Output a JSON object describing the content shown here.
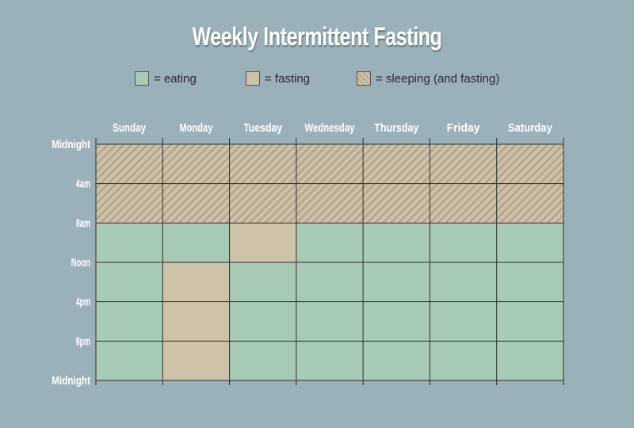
{
  "title": "Weekly Intermittent Fasting",
  "legend": [
    {
      "key": "eating",
      "label": "= eating"
    },
    {
      "key": "fasting",
      "label": "= fasting"
    },
    {
      "key": "sleeping",
      "label": "= sleeping (and fasting)"
    }
  ],
  "colors": {
    "eating": "#a8cbb5",
    "fasting": "#cec3a9",
    "sleeping_stripe": "#b5a891",
    "sleeping_base": "#cec3a9",
    "grid_line": "#2d2d2d",
    "background": "#9ab1b9"
  },
  "days": [
    "Sunday",
    "Monday",
    "Tuesday",
    "Wednesday",
    "Thursday",
    "Friday",
    "Saturday"
  ],
  "time_labels": [
    "Midnight",
    "4am",
    "8am",
    "Noon",
    "4pm",
    "8pm",
    "Midnight"
  ],
  "schedule": [
    [
      "sleeping",
      "sleeping",
      "eating",
      "eating",
      "eating",
      "eating"
    ],
    [
      "sleeping",
      "sleeping",
      "eating",
      "fasting",
      "fasting",
      "fasting"
    ],
    [
      "sleeping",
      "sleeping",
      "fasting",
      "eating",
      "eating",
      "eating"
    ],
    [
      "sleeping",
      "sleeping",
      "eating",
      "eating",
      "eating",
      "eating"
    ],
    [
      "sleeping",
      "sleeping",
      "eating",
      "eating",
      "eating",
      "eating"
    ],
    [
      "sleeping",
      "sleeping",
      "eating",
      "eating",
      "eating",
      "eating"
    ],
    [
      "sleeping",
      "sleeping",
      "eating",
      "eating",
      "eating",
      "eating"
    ]
  ]
}
